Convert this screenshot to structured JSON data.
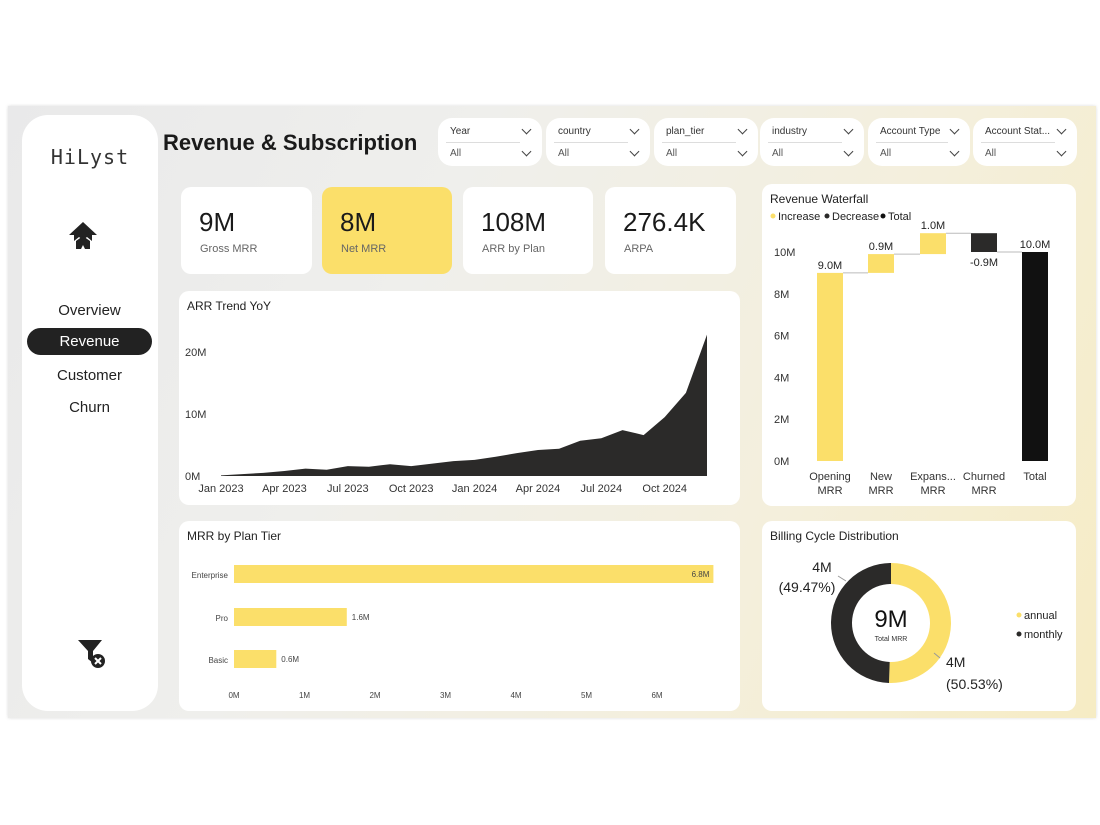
{
  "app": {
    "logo": "HiLyst",
    "page_title": "Revenue & Subscription"
  },
  "nav": [
    {
      "label": "Overview",
      "active": false
    },
    {
      "label": "Revenue",
      "active": true
    },
    {
      "label": "Customer",
      "active": false
    },
    {
      "label": "Churn",
      "active": false
    }
  ],
  "icons": {
    "home": "home-icon",
    "clear_filters": "clear-filter-icon"
  },
  "colors": {
    "accent": "#fbdf6a",
    "dark": "#2b2a29",
    "bar_yellow": "#fbdf6a"
  },
  "slicers": [
    {
      "label": "Year",
      "value": "All"
    },
    {
      "label": "country",
      "value": "All"
    },
    {
      "label": "plan_tier",
      "value": "All"
    },
    {
      "label": "industry",
      "value": "All"
    },
    {
      "label": "Account Type",
      "value": "All"
    },
    {
      "label": "Account Stat...",
      "value": "All"
    }
  ],
  "kpis": [
    {
      "value": "9M",
      "label": "Gross MRR",
      "highlighted": false
    },
    {
      "value": "8M",
      "label": "Net MRR",
      "highlighted": true
    },
    {
      "value": "108M",
      "label": "ARR by Plan",
      "highlighted": false
    },
    {
      "value": "276.4K",
      "label": "ARPA",
      "highlighted": false
    }
  ],
  "chart_data": [
    {
      "type": "area",
      "title": "ARR Trend YoY",
      "x_ticks": [
        "Jan 2023",
        "Apr 2023",
        "Jul 2023",
        "Oct 2023",
        "Jan 2024",
        "Apr 2024",
        "Jul 2024",
        "Oct 2024"
      ],
      "y_ticks": [
        "0M",
        "10M",
        "20M"
      ],
      "ylim": [
        0,
        25
      ],
      "x": [
        "2023-01",
        "2023-02",
        "2023-03",
        "2023-04",
        "2023-05",
        "2023-06",
        "2023-07",
        "2023-08",
        "2023-09",
        "2023-10",
        "2023-11",
        "2023-12",
        "2024-01",
        "2024-02",
        "2024-03",
        "2024-04",
        "2024-05",
        "2024-06",
        "2024-07",
        "2024-08",
        "2024-09",
        "2024-10",
        "2024-11",
        "2024-12"
      ],
      "values": [
        0.1,
        0.3,
        0.5,
        0.8,
        1.2,
        1.0,
        1.6,
        1.5,
        1.9,
        1.6,
        2.0,
        2.4,
        2.6,
        3.1,
        3.7,
        4.2,
        4.4,
        5.7,
        6.1,
        7.4,
        6.6,
        9.5,
        13.4,
        22.8
      ],
      "color": "#2b2a29"
    },
    {
      "type": "bar",
      "title": "Revenue Waterfall",
      "legend": [
        "Increase",
        "Decrease",
        "Total"
      ],
      "legend_colors": [
        "#fbdf6a",
        "#2b2a29",
        "#111111"
      ],
      "categories": [
        "Opening MRR",
        "New MRR",
        "Expans... MRR",
        "Churned MRR",
        "Total"
      ],
      "values": [
        9.0,
        0.9,
        1.0,
        -0.9,
        10.0
      ],
      "kinds": [
        "increase",
        "increase",
        "increase",
        "decrease",
        "total"
      ],
      "data_labels": [
        "9.0M",
        "0.9M",
        "1.0M",
        "-0.9M",
        "10.0M"
      ],
      "y_ticks": [
        "0M",
        "2M",
        "4M",
        "6M",
        "8M",
        "10M"
      ],
      "ylim": [
        0,
        11
      ]
    },
    {
      "type": "bar",
      "orientation": "horizontal",
      "title": "MRR by Plan Tier",
      "categories": [
        "Enterprise",
        "Pro",
        "Basic"
      ],
      "values": [
        6.8,
        1.6,
        0.6
      ],
      "data_labels": [
        "6.8M",
        "1.6M",
        "0.6M"
      ],
      "x_ticks": [
        "0M",
        "1M",
        "2M",
        "3M",
        "4M",
        "5M",
        "6M"
      ],
      "xlim": [
        0,
        7
      ]
    },
    {
      "type": "pie",
      "title": "Billing Cycle Distribution",
      "center_value": "9M",
      "center_label": "Total MRR",
      "legend": [
        "annual",
        "monthly"
      ],
      "slices": [
        {
          "name": "annual",
          "value": 50.53,
          "label": "4M",
          "pct": "(50.53%)",
          "color": "#fbdf6a"
        },
        {
          "name": "monthly",
          "value": 49.47,
          "label": "4M",
          "pct": "(49.47%)",
          "color": "#2b2a29"
        }
      ]
    }
  ]
}
